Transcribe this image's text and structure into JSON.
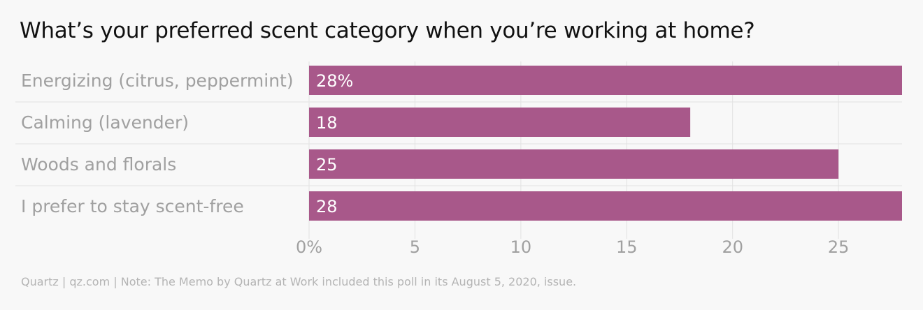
{
  "chart_data": {
    "type": "bar",
    "orientation": "horizontal",
    "title": "What’s your preferred scent category when you’re working at home?",
    "categories": [
      "Energizing (citrus, peppermint)",
      "Calming (lavender)",
      "Woods and florals",
      "I prefer to stay scent-free"
    ],
    "values": [
      28,
      18,
      25,
      28
    ],
    "value_labels": [
      "28%",
      "18",
      "25",
      "28"
    ],
    "xlim": [
      0,
      28
    ],
    "x_ticks": [
      0,
      5,
      10,
      15,
      20,
      25
    ],
    "x_tick_labels": [
      "0%",
      "5",
      "10",
      "15",
      "20",
      "25"
    ],
    "grid": true,
    "bar_color": "#a8588a"
  },
  "footer": "Quartz | qz.com | Note: The Memo by Quartz at Work included this poll in its August 5, 2020, issue."
}
